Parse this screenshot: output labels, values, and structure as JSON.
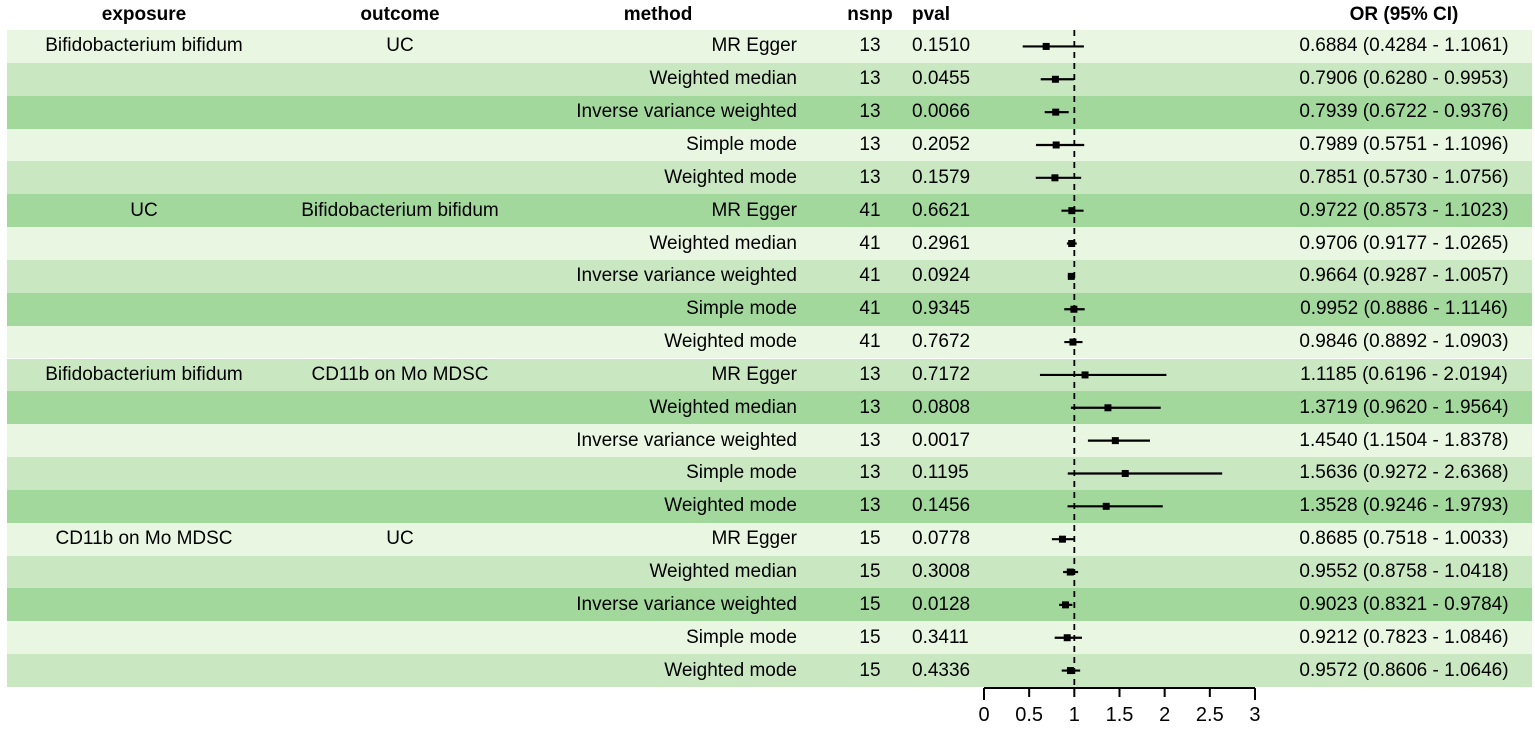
{
  "header": {
    "exposure": "exposure",
    "outcome": "outcome",
    "method": "method",
    "nsnp": "nsnp",
    "pval": "pval",
    "or_ci": "OR (95% CI)"
  },
  "colors": {
    "row_shades": [
      "#E9F6E2",
      "#C9E7C1",
      "#A2D89C"
    ],
    "marker": "#000000",
    "ci_line": "#000000",
    "reference_line": "#000000",
    "axis": "#000000",
    "text": "#000000",
    "background": "#FFFFFF"
  },
  "chart_data": {
    "type": "forest",
    "title": "",
    "columns": [
      "exposure",
      "outcome",
      "method",
      "nsnp",
      "pval",
      "OR (95% CI)"
    ],
    "x_axis": {
      "range": [
        0,
        3
      ],
      "tick_values": [
        0,
        0.5,
        1,
        1.5,
        2,
        2.5,
        3
      ],
      "tick_labels": [
        "0",
        "0.5",
        "1",
        "1.5",
        "2",
        "2.5",
        "3"
      ]
    },
    "reference_line": 1,
    "rows": [
      {
        "exposure": "Bifidobacterium bifidum",
        "outcome": "UC",
        "method": "MR Egger",
        "nsnp": "13",
        "pval": "0.1510",
        "or": 0.6884,
        "ci_low": 0.4284,
        "ci_high": 1.1061,
        "or_ci": "0.6884 (0.4284 - 1.1061)"
      },
      {
        "exposure": "",
        "outcome": "",
        "method": "Weighted median",
        "nsnp": "13",
        "pval": "0.0455",
        "or": 0.7906,
        "ci_low": 0.628,
        "ci_high": 0.9953,
        "or_ci": "0.7906 (0.6280 - 0.9953)"
      },
      {
        "exposure": "",
        "outcome": "",
        "method": "Inverse variance weighted",
        "nsnp": "13",
        "pval": "0.0066",
        "or": 0.7939,
        "ci_low": 0.6722,
        "ci_high": 0.9376,
        "or_ci": "0.7939 (0.6722 - 0.9376)"
      },
      {
        "exposure": "",
        "outcome": "",
        "method": "Simple mode",
        "nsnp": "13",
        "pval": "0.2052",
        "or": 0.7989,
        "ci_low": 0.5751,
        "ci_high": 1.1096,
        "or_ci": "0.7989 (0.5751 - 1.1096)"
      },
      {
        "exposure": "",
        "outcome": "",
        "method": "Weighted mode",
        "nsnp": "13",
        "pval": "0.1579",
        "or": 0.7851,
        "ci_low": 0.573,
        "ci_high": 1.0756,
        "or_ci": "0.7851 (0.5730 - 1.0756)"
      },
      {
        "exposure": "UC",
        "outcome": "Bifidobacterium bifidum",
        "method": "MR Egger",
        "nsnp": "41",
        "pval": "0.6621",
        "or": 0.9722,
        "ci_low": 0.8573,
        "ci_high": 1.1023,
        "or_ci": "0.9722 (0.8573 - 1.1023)"
      },
      {
        "exposure": "",
        "outcome": "",
        "method": "Weighted median",
        "nsnp": "41",
        "pval": "0.2961",
        "or": 0.9706,
        "ci_low": 0.9177,
        "ci_high": 1.0265,
        "or_ci": "0.9706 (0.9177 - 1.0265)"
      },
      {
        "exposure": "",
        "outcome": "",
        "method": "Inverse variance weighted",
        "nsnp": "41",
        "pval": "0.0924",
        "or": 0.9664,
        "ci_low": 0.9287,
        "ci_high": 1.0057,
        "or_ci": "0.9664 (0.9287 - 1.0057)"
      },
      {
        "exposure": "",
        "outcome": "",
        "method": "Simple mode",
        "nsnp": "41",
        "pval": "0.9345",
        "or": 0.9952,
        "ci_low": 0.8886,
        "ci_high": 1.1146,
        "or_ci": "0.9952 (0.8886 - 1.1146)"
      },
      {
        "exposure": "",
        "outcome": "",
        "method": "Weighted mode",
        "nsnp": "41",
        "pval": "0.7672",
        "or": 0.9846,
        "ci_low": 0.8892,
        "ci_high": 1.0903,
        "or_ci": "0.9846 (0.8892 - 1.0903)"
      },
      {
        "exposure": "Bifidobacterium bifidum",
        "outcome": "CD11b on Mo MDSC",
        "method": "MR Egger",
        "nsnp": "13",
        "pval": "0.7172",
        "or": 1.1185,
        "ci_low": 0.6196,
        "ci_high": 2.0194,
        "or_ci": "1.1185 (0.6196 - 2.0194)"
      },
      {
        "exposure": "",
        "outcome": "",
        "method": "Weighted median",
        "nsnp": "13",
        "pval": "0.0808",
        "or": 1.3719,
        "ci_low": 0.962,
        "ci_high": 1.9564,
        "or_ci": "1.3719 (0.9620 - 1.9564)"
      },
      {
        "exposure": "",
        "outcome": "",
        "method": "Inverse variance weighted",
        "nsnp": "13",
        "pval": "0.0017",
        "or": 1.454,
        "ci_low": 1.1504,
        "ci_high": 1.8378,
        "or_ci": "1.4540 (1.1504 - 1.8378)"
      },
      {
        "exposure": "",
        "outcome": "",
        "method": "Simple mode",
        "nsnp": "13",
        "pval": "0.1195",
        "or": 1.5636,
        "ci_low": 0.9272,
        "ci_high": 2.6368,
        "or_ci": "1.5636 (0.9272 - 2.6368)"
      },
      {
        "exposure": "",
        "outcome": "",
        "method": "Weighted mode",
        "nsnp": "13",
        "pval": "0.1456",
        "or": 1.3528,
        "ci_low": 0.9246,
        "ci_high": 1.9793,
        "or_ci": "1.3528 (0.9246 - 1.9793)"
      },
      {
        "exposure": "CD11b on Mo MDSC",
        "outcome": "UC",
        "method": "MR Egger",
        "nsnp": "15",
        "pval": "0.0778",
        "or": 0.8685,
        "ci_low": 0.7518,
        "ci_high": 1.0033,
        "or_ci": "0.8685 (0.7518 - 1.0033)"
      },
      {
        "exposure": "",
        "outcome": "",
        "method": "Weighted median",
        "nsnp": "15",
        "pval": "0.3008",
        "or": 0.9552,
        "ci_low": 0.8758,
        "ci_high": 1.0418,
        "or_ci": "0.9552 (0.8758 - 1.0418)"
      },
      {
        "exposure": "",
        "outcome": "",
        "method": "Inverse variance weighted",
        "nsnp": "15",
        "pval": "0.0128",
        "or": 0.9023,
        "ci_low": 0.8321,
        "ci_high": 0.9784,
        "or_ci": "0.9023 (0.8321 - 0.9784)"
      },
      {
        "exposure": "",
        "outcome": "",
        "method": "Simple mode",
        "nsnp": "15",
        "pval": "0.3411",
        "or": 0.9212,
        "ci_low": 0.7823,
        "ci_high": 1.0846,
        "or_ci": "0.9212 (0.7823 - 1.0846)"
      },
      {
        "exposure": "",
        "outcome": "",
        "method": "Weighted mode",
        "nsnp": "15",
        "pval": "0.4336",
        "or": 0.9572,
        "ci_low": 0.8606,
        "ci_high": 1.0646,
        "or_ci": "0.9572 (0.8606 - 1.0646)"
      }
    ]
  }
}
